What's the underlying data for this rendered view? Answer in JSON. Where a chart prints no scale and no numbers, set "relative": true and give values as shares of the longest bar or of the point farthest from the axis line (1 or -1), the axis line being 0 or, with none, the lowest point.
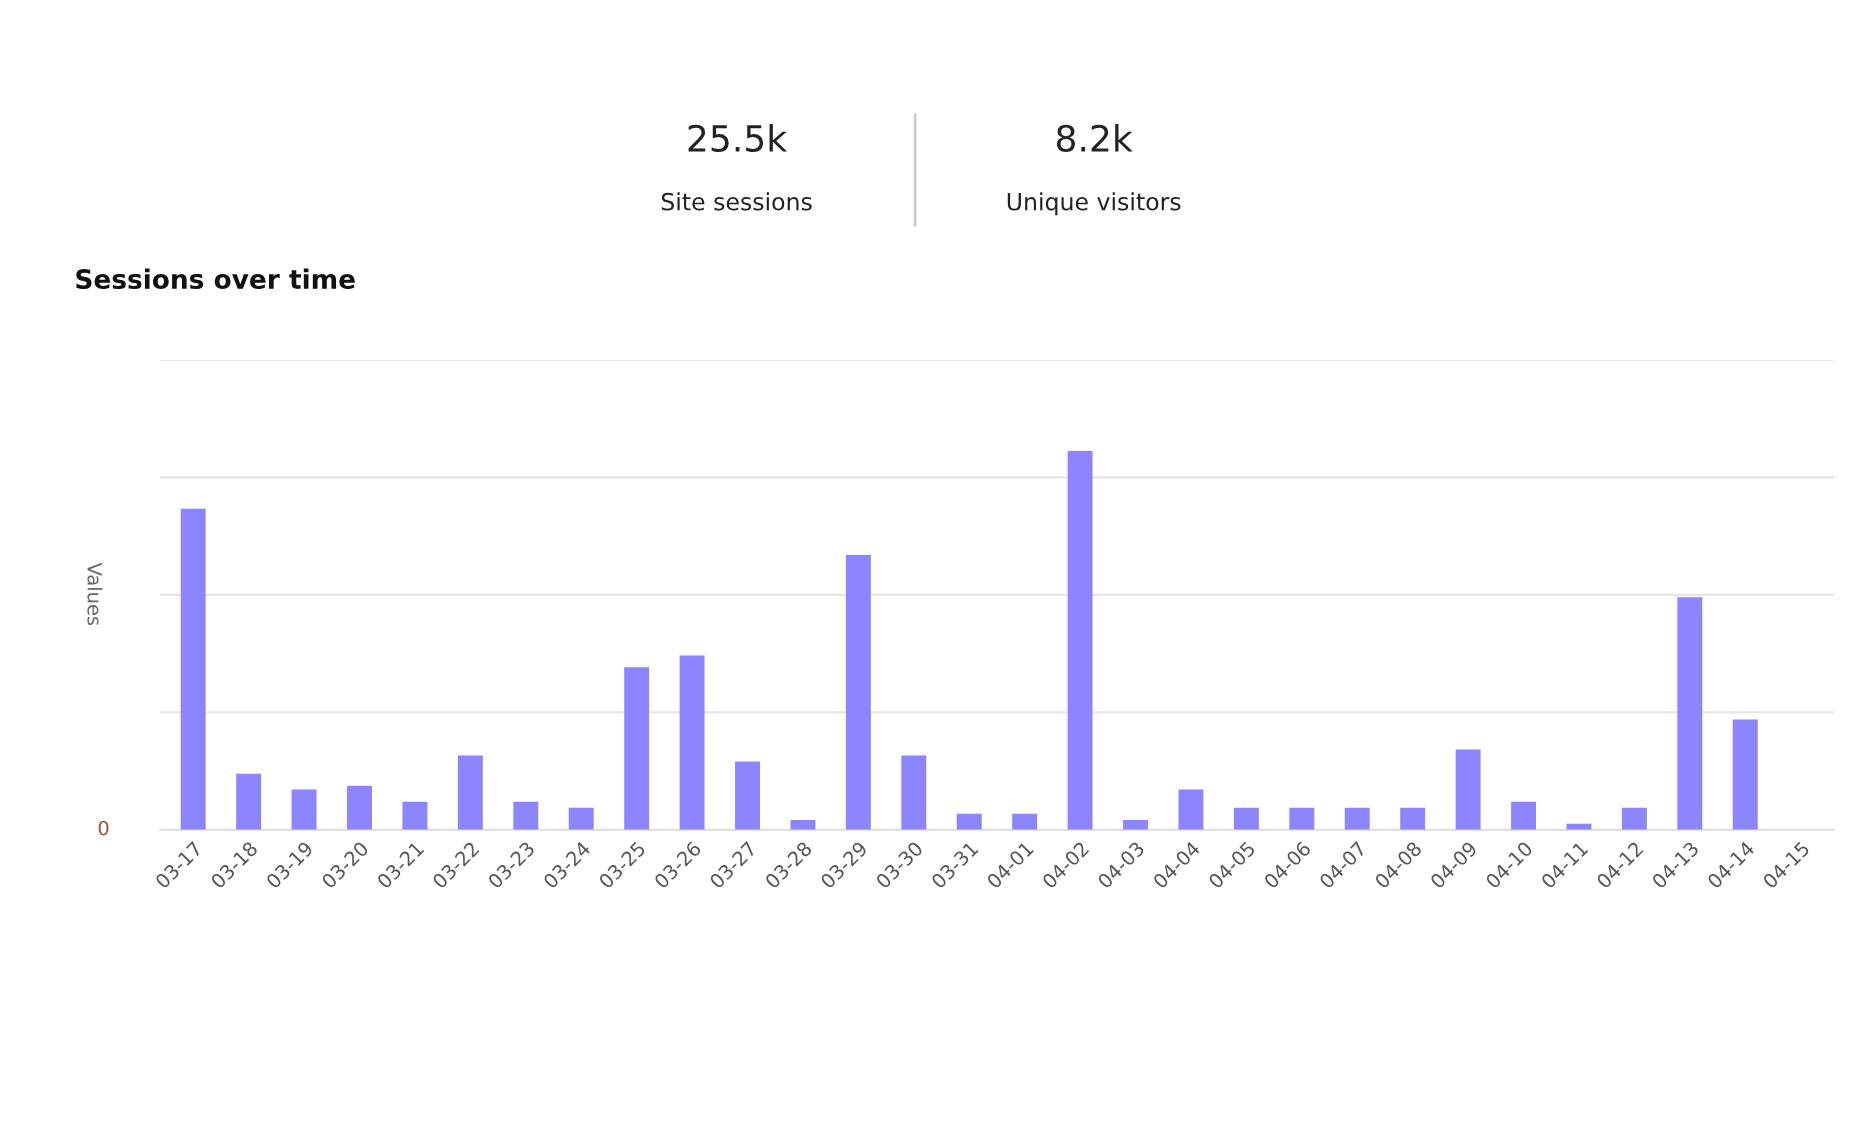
{
  "chart_data": [
    {
      "type": "other",
      "annotations": [
        "25.5k",
        "Site sessions",
        "8.2k",
        "Unique visitors"
      ]
    },
    {
      "type": "bar",
      "title": "Sessions over time",
      "ylabel": "Values",
      "relative": true,
      "color": "#8c85ff",
      "grid": "y",
      "annotations": [
        "0"
      ],
      "categories": [
        "03-17",
        "03-18",
        "03-19",
        "03-20",
        "03-21",
        "03-22",
        "03-23",
        "03-24",
        "03-25",
        "03-26",
        "03-27",
        "03-28",
        "03-29",
        "03-30",
        "03-31",
        "04-01",
        "04-02",
        "04-03",
        "04-04",
        "04-05",
        "04-06",
        "04-07",
        "04-08",
        "04-09",
        "04-10",
        "04-11",
        "04-12",
        "04-13",
        "04-14",
        "04-15"
      ],
      "values": [
        0.847,
        0.148,
        0.106,
        0.116,
        0.074,
        0.196,
        0.074,
        0.058,
        0.429,
        0.46,
        0.18,
        0.026,
        0.725,
        0.196,
        0.042,
        0.042,
        1,
        0.026,
        0.106,
        0.058,
        0.058,
        0.058,
        0.058,
        0.212,
        0.074,
        0.016,
        0.058,
        0.614,
        0.291,
        0
      ]
    }
  ]
}
